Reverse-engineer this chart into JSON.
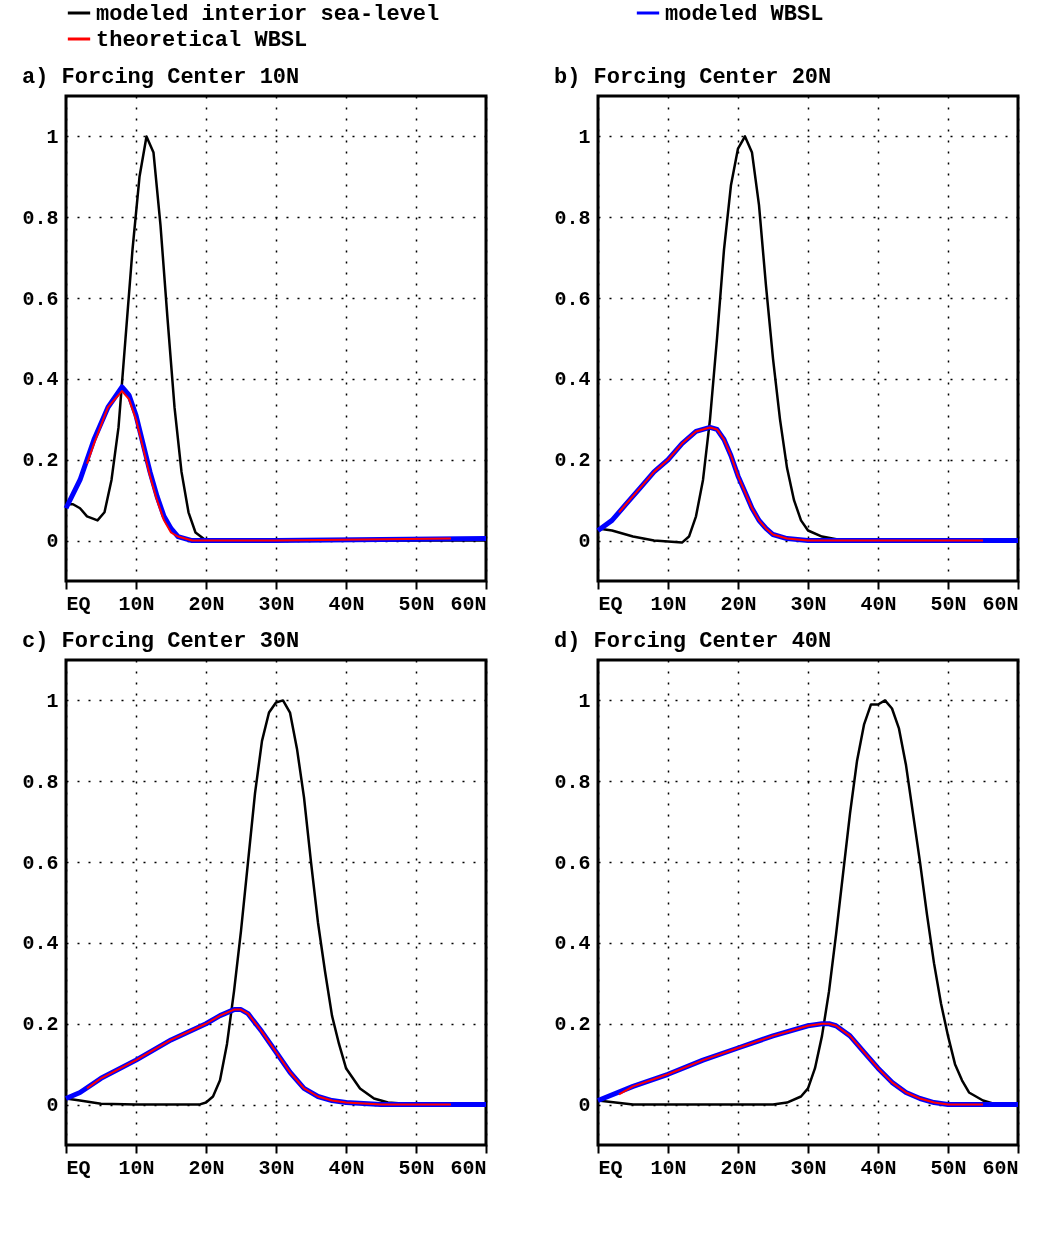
{
  "chart_data": [
    {
      "type": "line",
      "title": "a) Forcing Center 10N",
      "legend": "top",
      "grid": true,
      "line_style": "solid",
      "xlim": [
        0,
        60
      ],
      "ylim": [
        -0.1,
        1.1
      ],
      "xticks": [
        {
          "value": 0,
          "label": "EQ"
        },
        {
          "value": 10,
          "label": "10N"
        },
        {
          "value": 20,
          "label": "20N"
        },
        {
          "value": 30,
          "label": "30N"
        },
        {
          "value": 40,
          "label": "40N"
        },
        {
          "value": 50,
          "label": "50N"
        },
        {
          "value": 60,
          "label": "60N"
        }
      ],
      "yticks": [
        0,
        0.2,
        0.4,
        0.6,
        0.8,
        1
      ],
      "series": [
        {
          "name": "modeled interior sea-level",
          "color": "#000000",
          "x": [
            0,
            1,
            2,
            3,
            4.5,
            5.5,
            6.5,
            7.5,
            8.5,
            9.5,
            10.5,
            11.5,
            12.5,
            13.5,
            14.5,
            15.5,
            16.5,
            17.5,
            18.5,
            20,
            25,
            60
          ],
          "values": [
            0.09,
            0.09,
            0.08,
            0.06,
            0.05,
            0.07,
            0.15,
            0.28,
            0.5,
            0.72,
            0.9,
            1.0,
            0.96,
            0.78,
            0.55,
            0.33,
            0.17,
            0.07,
            0.02,
            0.0,
            0.0,
            0.0
          ]
        },
        {
          "name": "modeled WBSL",
          "color": "#0000ff",
          "x": [
            0,
            2,
            4,
            6,
            8,
            9,
            10,
            11,
            12,
            13,
            14,
            15,
            16,
            18,
            30,
            60
          ],
          "values": [
            0.08,
            0.15,
            0.25,
            0.33,
            0.38,
            0.36,
            0.31,
            0.24,
            0.17,
            0.11,
            0.06,
            0.03,
            0.01,
            0.0,
            0.0,
            0.005
          ]
        },
        {
          "name": "theoretical WBSL",
          "color": "#ff0000",
          "x": [
            3,
            4,
            6,
            8,
            9,
            10,
            11,
            12,
            13,
            14,
            15,
            16,
            18,
            30,
            55
          ],
          "values": [
            0.19,
            0.24,
            0.33,
            0.37,
            0.35,
            0.3,
            0.23,
            0.16,
            0.1,
            0.05,
            0.02,
            0.01,
            0.0,
            0.0,
            0.005
          ]
        }
      ]
    },
    {
      "type": "line",
      "title": "b) Forcing Center 20N",
      "grid": true,
      "line_style": "solid",
      "xlim": [
        0,
        60
      ],
      "ylim": [
        -0.1,
        1.1
      ],
      "xticks": [
        {
          "value": 0,
          "label": "EQ"
        },
        {
          "value": 10,
          "label": "10N"
        },
        {
          "value": 20,
          "label": "20N"
        },
        {
          "value": 30,
          "label": "30N"
        },
        {
          "value": 40,
          "label": "40N"
        },
        {
          "value": 50,
          "label": "50N"
        },
        {
          "value": 60,
          "label": "60N"
        }
      ],
      "yticks": [
        0,
        0.2,
        0.4,
        0.6,
        0.8,
        1
      ],
      "series": [
        {
          "color": "#000000",
          "x": [
            0,
            2,
            5,
            8,
            12,
            13,
            14,
            15,
            16,
            17,
            18,
            19,
            20,
            21,
            22,
            23,
            24,
            25,
            26,
            27,
            28,
            29,
            30,
            32,
            35,
            60
          ],
          "values": [
            0.03,
            0.025,
            0.01,
            0.0,
            -0.005,
            0.01,
            0.06,
            0.15,
            0.3,
            0.5,
            0.72,
            0.88,
            0.97,
            1.0,
            0.96,
            0.83,
            0.63,
            0.45,
            0.3,
            0.18,
            0.1,
            0.05,
            0.025,
            0.01,
            0.0,
            0.0
          ]
        },
        {
          "color": "#0000ff",
          "x": [
            0,
            2,
            4,
            6,
            8,
            10,
            12,
            14,
            16,
            17,
            18,
            19,
            20,
            21,
            22,
            23,
            24,
            25,
            27,
            30,
            60
          ],
          "values": [
            0.025,
            0.05,
            0.09,
            0.13,
            0.17,
            0.2,
            0.24,
            0.27,
            0.28,
            0.275,
            0.25,
            0.21,
            0.16,
            0.12,
            0.08,
            0.05,
            0.03,
            0.015,
            0.005,
            0.0,
            0.0
          ]
        },
        {
          "color": "#ff0000",
          "x": [
            3,
            4,
            6,
            8,
            10,
            12,
            14,
            16,
            17,
            18,
            19,
            20,
            21,
            22,
            23,
            24,
            25,
            27,
            30,
            55
          ],
          "values": [
            0.07,
            0.09,
            0.13,
            0.17,
            0.2,
            0.24,
            0.27,
            0.28,
            0.275,
            0.25,
            0.21,
            0.16,
            0.12,
            0.08,
            0.05,
            0.03,
            0.015,
            0.005,
            0.0,
            0.0
          ]
        }
      ]
    },
    {
      "type": "line",
      "title": "c) Forcing Center 30N",
      "grid": true,
      "line_style": "solid",
      "xlim": [
        0,
        60
      ],
      "ylim": [
        -0.1,
        1.1
      ],
      "xticks": [
        {
          "value": 0,
          "label": "EQ"
        },
        {
          "value": 10,
          "label": "10N"
        },
        {
          "value": 20,
          "label": "20N"
        },
        {
          "value": 30,
          "label": "30N"
        },
        {
          "value": 40,
          "label": "40N"
        },
        {
          "value": 50,
          "label": "50N"
        },
        {
          "value": 60,
          "label": "60N"
        }
      ],
      "yticks": [
        0,
        0.2,
        0.4,
        0.6,
        0.8,
        1
      ],
      "series": [
        {
          "color": "#000000",
          "x": [
            0,
            2,
            5,
            10,
            19,
            20,
            21,
            22,
            23,
            24,
            25,
            26,
            27,
            28,
            29,
            30,
            31,
            32,
            33,
            34,
            35,
            36,
            37,
            38,
            39,
            40,
            42,
            44,
            46,
            50,
            60
          ],
          "values": [
            0.015,
            0.01,
            0.002,
            0.0,
            0.0,
            0.005,
            0.02,
            0.06,
            0.15,
            0.28,
            0.43,
            0.6,
            0.77,
            0.9,
            0.97,
            0.995,
            1.0,
            0.97,
            0.88,
            0.76,
            0.6,
            0.45,
            0.33,
            0.22,
            0.15,
            0.09,
            0.04,
            0.015,
            0.005,
            0.0,
            0.0
          ]
        },
        {
          "color": "#0000ff",
          "x": [
            0,
            2,
            5,
            10,
            15,
            20,
            22,
            24,
            25,
            26,
            28,
            30,
            32,
            34,
            36,
            38,
            40,
            45,
            60
          ],
          "values": [
            0.015,
            0.03,
            0.065,
            0.11,
            0.16,
            0.2,
            0.22,
            0.235,
            0.235,
            0.225,
            0.18,
            0.13,
            0.08,
            0.04,
            0.02,
            0.01,
            0.005,
            0.0,
            0.0
          ]
        },
        {
          "color": "#ff0000",
          "x": [
            3,
            5,
            10,
            15,
            20,
            22,
            24,
            25,
            26,
            28,
            30,
            32,
            34,
            36,
            38,
            40,
            45,
            55
          ],
          "values": [
            0.04,
            0.065,
            0.11,
            0.16,
            0.2,
            0.22,
            0.235,
            0.235,
            0.225,
            0.18,
            0.13,
            0.08,
            0.04,
            0.02,
            0.01,
            0.005,
            0.0,
            0.0
          ]
        }
      ]
    },
    {
      "type": "line",
      "title": "d) Forcing Center 40N",
      "grid": true,
      "line_style": "solid",
      "xlim": [
        0,
        60
      ],
      "ylim": [
        -0.1,
        1.1
      ],
      "xticks": [
        {
          "value": 0,
          "label": "EQ"
        },
        {
          "value": 10,
          "label": "10N"
        },
        {
          "value": 20,
          "label": "20N"
        },
        {
          "value": 30,
          "label": "30N"
        },
        {
          "value": 40,
          "label": "40N"
        },
        {
          "value": 50,
          "label": "50N"
        },
        {
          "value": 60,
          "label": "60N"
        }
      ],
      "yticks": [
        0,
        0.2,
        0.4,
        0.6,
        0.8,
        1
      ],
      "series": [
        {
          "color": "#000000",
          "x": [
            0,
            5,
            25,
            27,
            29,
            30,
            31,
            32,
            33,
            34,
            35,
            36,
            37,
            38,
            39,
            40,
            41,
            42,
            43,
            44,
            45,
            46,
            47,
            48,
            49,
            50,
            51,
            52,
            53,
            55,
            57,
            60
          ],
          "values": [
            0.01,
            0.0,
            0.0,
            0.005,
            0.02,
            0.04,
            0.09,
            0.17,
            0.28,
            0.42,
            0.57,
            0.72,
            0.85,
            0.94,
            0.99,
            0.99,
            1.0,
            0.98,
            0.93,
            0.84,
            0.72,
            0.6,
            0.47,
            0.35,
            0.25,
            0.17,
            0.1,
            0.06,
            0.03,
            0.01,
            0.0,
            0.0
          ]
        },
        {
          "color": "#0000ff",
          "x": [
            0,
            5,
            10,
            15,
            20,
            25,
            30,
            32,
            33,
            34,
            36,
            38,
            40,
            42,
            44,
            46,
            48,
            50,
            60
          ],
          "values": [
            0.01,
            0.045,
            0.075,
            0.11,
            0.14,
            0.17,
            0.195,
            0.2,
            0.2,
            0.195,
            0.17,
            0.13,
            0.09,
            0.055,
            0.03,
            0.015,
            0.005,
            0.0,
            0.0
          ]
        },
        {
          "color": "#ff0000",
          "x": [
            3,
            5,
            10,
            15,
            20,
            25,
            30,
            32,
            33,
            34,
            36,
            38,
            40,
            42,
            44,
            46,
            48,
            50,
            55
          ],
          "values": [
            0.025,
            0.045,
            0.075,
            0.11,
            0.14,
            0.17,
            0.195,
            0.2,
            0.2,
            0.195,
            0.17,
            0.13,
            0.09,
            0.055,
            0.03,
            0.015,
            0.005,
            0.0,
            0.0
          ]
        }
      ]
    }
  ]
}
